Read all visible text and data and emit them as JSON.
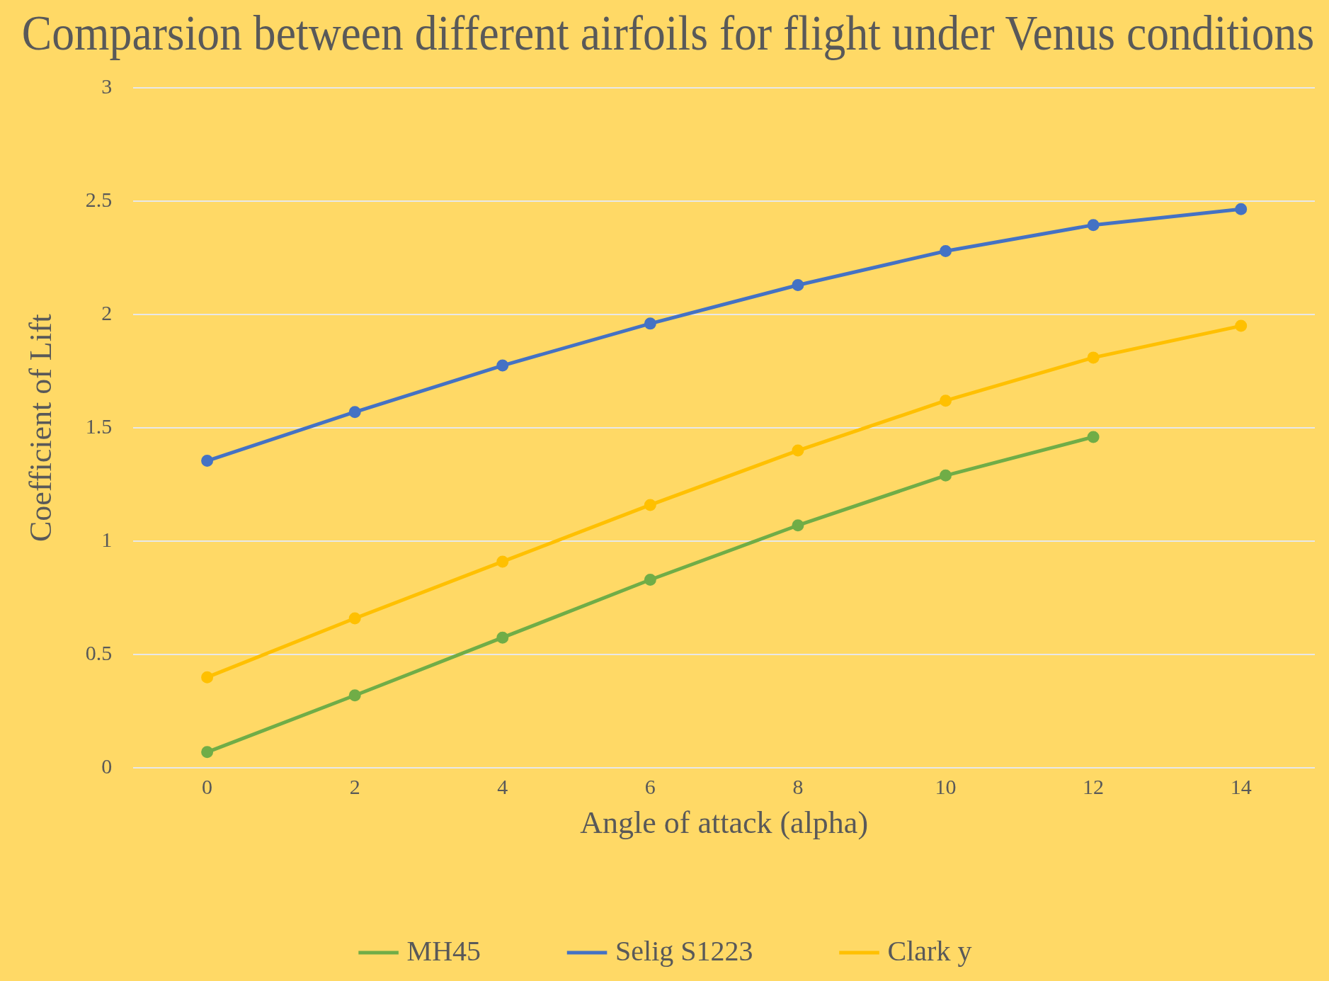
{
  "chart_data": {
    "type": "line",
    "title": "Comparsion between different airfoils for flight under Venus conditions",
    "xlabel": "Angle of attack (alpha)",
    "ylabel": "Coefficient of Lift",
    "categories": [
      "0",
      "2",
      "4",
      "6",
      "8",
      "10",
      "12",
      "14"
    ],
    "series": [
      {
        "name": "MH45",
        "color": "#70ad47",
        "values": [
          0.07,
          0.32,
          0.575,
          0.83,
          1.07,
          1.29,
          1.46,
          null
        ]
      },
      {
        "name": "Selig S1223",
        "color": "#4472c4",
        "values": [
          1.355,
          1.57,
          1.775,
          1.96,
          2.13,
          2.28,
          2.395,
          2.465
        ]
      },
      {
        "name": "Clark y",
        "color": "#ffc000",
        "values": [
          0.4,
          0.66,
          0.91,
          1.16,
          1.4,
          1.62,
          1.81,
          1.95
        ]
      }
    ],
    "ylim": [
      0,
      3
    ],
    "yticks": [
      0,
      0.5,
      1,
      1.5,
      2,
      2.5,
      3
    ],
    "grid": "y",
    "legend": "bottom",
    "marker": "circle",
    "line_style": "solid"
  }
}
